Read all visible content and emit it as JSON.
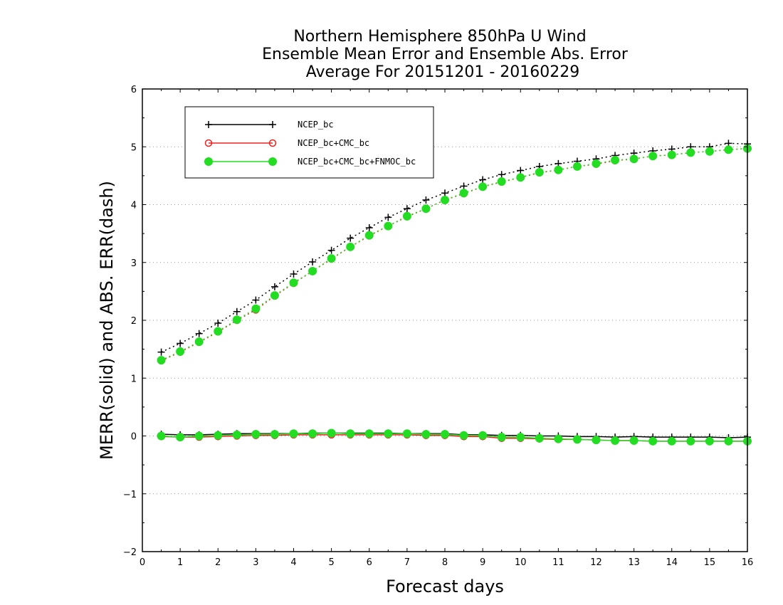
{
  "chart_data": {
    "type": "line",
    "title": [
      "Northern Hemisphere 850hPa U Wind",
      "Ensemble Mean Error and Ensemble Abs. Error",
      "Average For 20151201 - 20160229"
    ],
    "xlabel": "Forecast days",
    "ylabel": "MERR(solid) and ABS. ERR(dash)",
    "xlim": [
      0,
      16
    ],
    "ylim": [
      -2,
      6
    ],
    "xticks": [
      "0",
      "1",
      "2",
      "3",
      "4",
      "5",
      "6",
      "7",
      "8",
      "9",
      "10",
      "11",
      "12",
      "13",
      "14",
      "15",
      "16"
    ],
    "yticks": [
      "−2",
      "−1",
      "0",
      "1",
      "2",
      "3",
      "4",
      "5",
      "6"
    ],
    "grid": "horizontal dotted",
    "legend_position": "top-left",
    "x": [
      0.5,
      1,
      1.5,
      2,
      2.5,
      3,
      3.5,
      4,
      4.5,
      5,
      5.5,
      6,
      6.5,
      7,
      7.5,
      8,
      8.5,
      9,
      9.5,
      10,
      10.5,
      11,
      11.5,
      12,
      12.5,
      13,
      13.5,
      14,
      14.5,
      15,
      15.5,
      16
    ],
    "series": [
      {
        "name": "NCEP_bc",
        "color": "#000000",
        "marker": "plus",
        "merr": [
          0.03,
          0.02,
          0.02,
          0.03,
          0.04,
          0.04,
          0.04,
          0.04,
          0.05,
          0.05,
          0.05,
          0.05,
          0.05,
          0.04,
          0.04,
          0.04,
          0.02,
          0.02,
          0.01,
          0.01,
          0.0,
          0.0,
          -0.01,
          -0.01,
          -0.02,
          -0.01,
          -0.02,
          -0.02,
          -0.02,
          -0.02,
          -0.03,
          -0.02
        ],
        "abs_err": [
          1.45,
          1.6,
          1.77,
          1.95,
          2.15,
          2.35,
          2.58,
          2.8,
          3.01,
          3.21,
          3.42,
          3.6,
          3.78,
          3.93,
          4.08,
          4.2,
          4.32,
          4.43,
          4.52,
          4.59,
          4.66,
          4.71,
          4.75,
          4.79,
          4.85,
          4.89,
          4.93,
          4.96,
          5.0,
          5.0,
          5.06,
          5.05
        ]
      },
      {
        "name": "NCEP_bc+CMC_bc",
        "color": "#ee2222",
        "marker": "open-circle",
        "merr": [
          -0.01,
          -0.02,
          -0.02,
          -0.01,
          0.0,
          0.01,
          0.01,
          0.02,
          0.02,
          0.02,
          0.02,
          0.02,
          0.02,
          0.02,
          0.01,
          0.01,
          -0.01,
          -0.01,
          -0.04,
          -0.04,
          -0.05,
          -0.06,
          -0.06,
          -0.07,
          -0.08,
          -0.08,
          -0.09,
          -0.09,
          -0.09,
          -0.09,
          -0.09,
          -0.09
        ],
        "abs_err": [
          1.3,
          1.45,
          1.62,
          1.8,
          2.0,
          2.18,
          2.42,
          2.64,
          2.85,
          3.06,
          3.27,
          3.46,
          3.63,
          3.79,
          3.93,
          4.08,
          4.19,
          4.31,
          4.39,
          4.47,
          4.55,
          4.6,
          4.66,
          4.7,
          4.76,
          4.79,
          4.84,
          4.86,
          4.9,
          4.92,
          4.95,
          4.97
        ]
      },
      {
        "name": "NCEP_bc+CMC_bc+FNMOC_bc",
        "color": "#22dd22",
        "marker": "filled-circle",
        "merr": [
          0.0,
          -0.02,
          0.0,
          0.01,
          0.02,
          0.03,
          0.03,
          0.04,
          0.04,
          0.05,
          0.04,
          0.04,
          0.04,
          0.04,
          0.03,
          0.03,
          0.01,
          0.01,
          -0.02,
          -0.02,
          -0.04,
          -0.05,
          -0.06,
          -0.07,
          -0.08,
          -0.08,
          -0.09,
          -0.09,
          -0.09,
          -0.09,
          -0.09,
          -0.09
        ],
        "abs_err": [
          1.31,
          1.46,
          1.63,
          1.81,
          2.01,
          2.2,
          2.43,
          2.65,
          2.85,
          3.07,
          3.27,
          3.47,
          3.63,
          3.8,
          3.93,
          4.08,
          4.2,
          4.31,
          4.4,
          4.47,
          4.56,
          4.6,
          4.66,
          4.71,
          4.77,
          4.79,
          4.84,
          4.86,
          4.9,
          4.92,
          4.95,
          4.97
        ]
      }
    ]
  }
}
